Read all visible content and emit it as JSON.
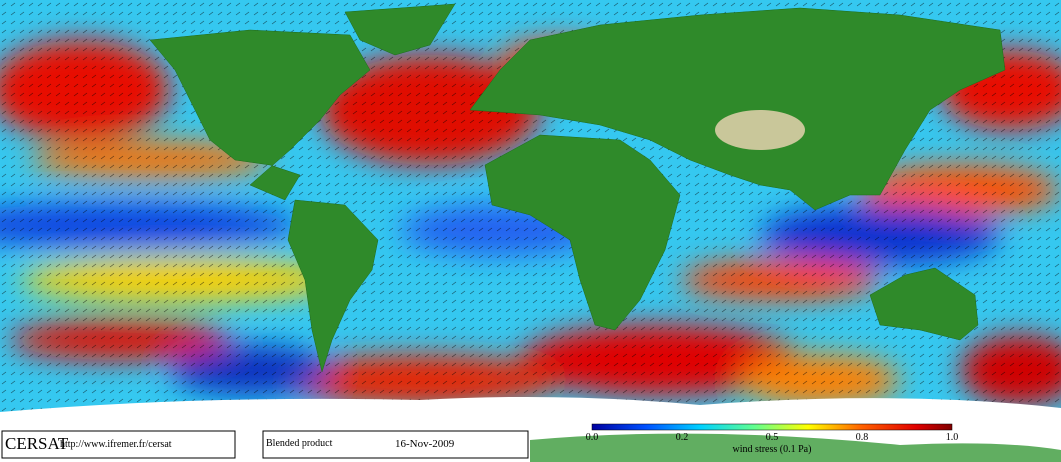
{
  "logo": {
    "name": "CERSAT",
    "url": "http://www.ifremer.fr/cersat"
  },
  "product": {
    "label": "Blended product",
    "date": "16-Nov-2009"
  },
  "colorbar": {
    "ticks": [
      "0.0",
      "0.2",
      "0.5",
      "0.8",
      "1.0"
    ],
    "title": "wind stress (0.1 Pa)"
  }
}
